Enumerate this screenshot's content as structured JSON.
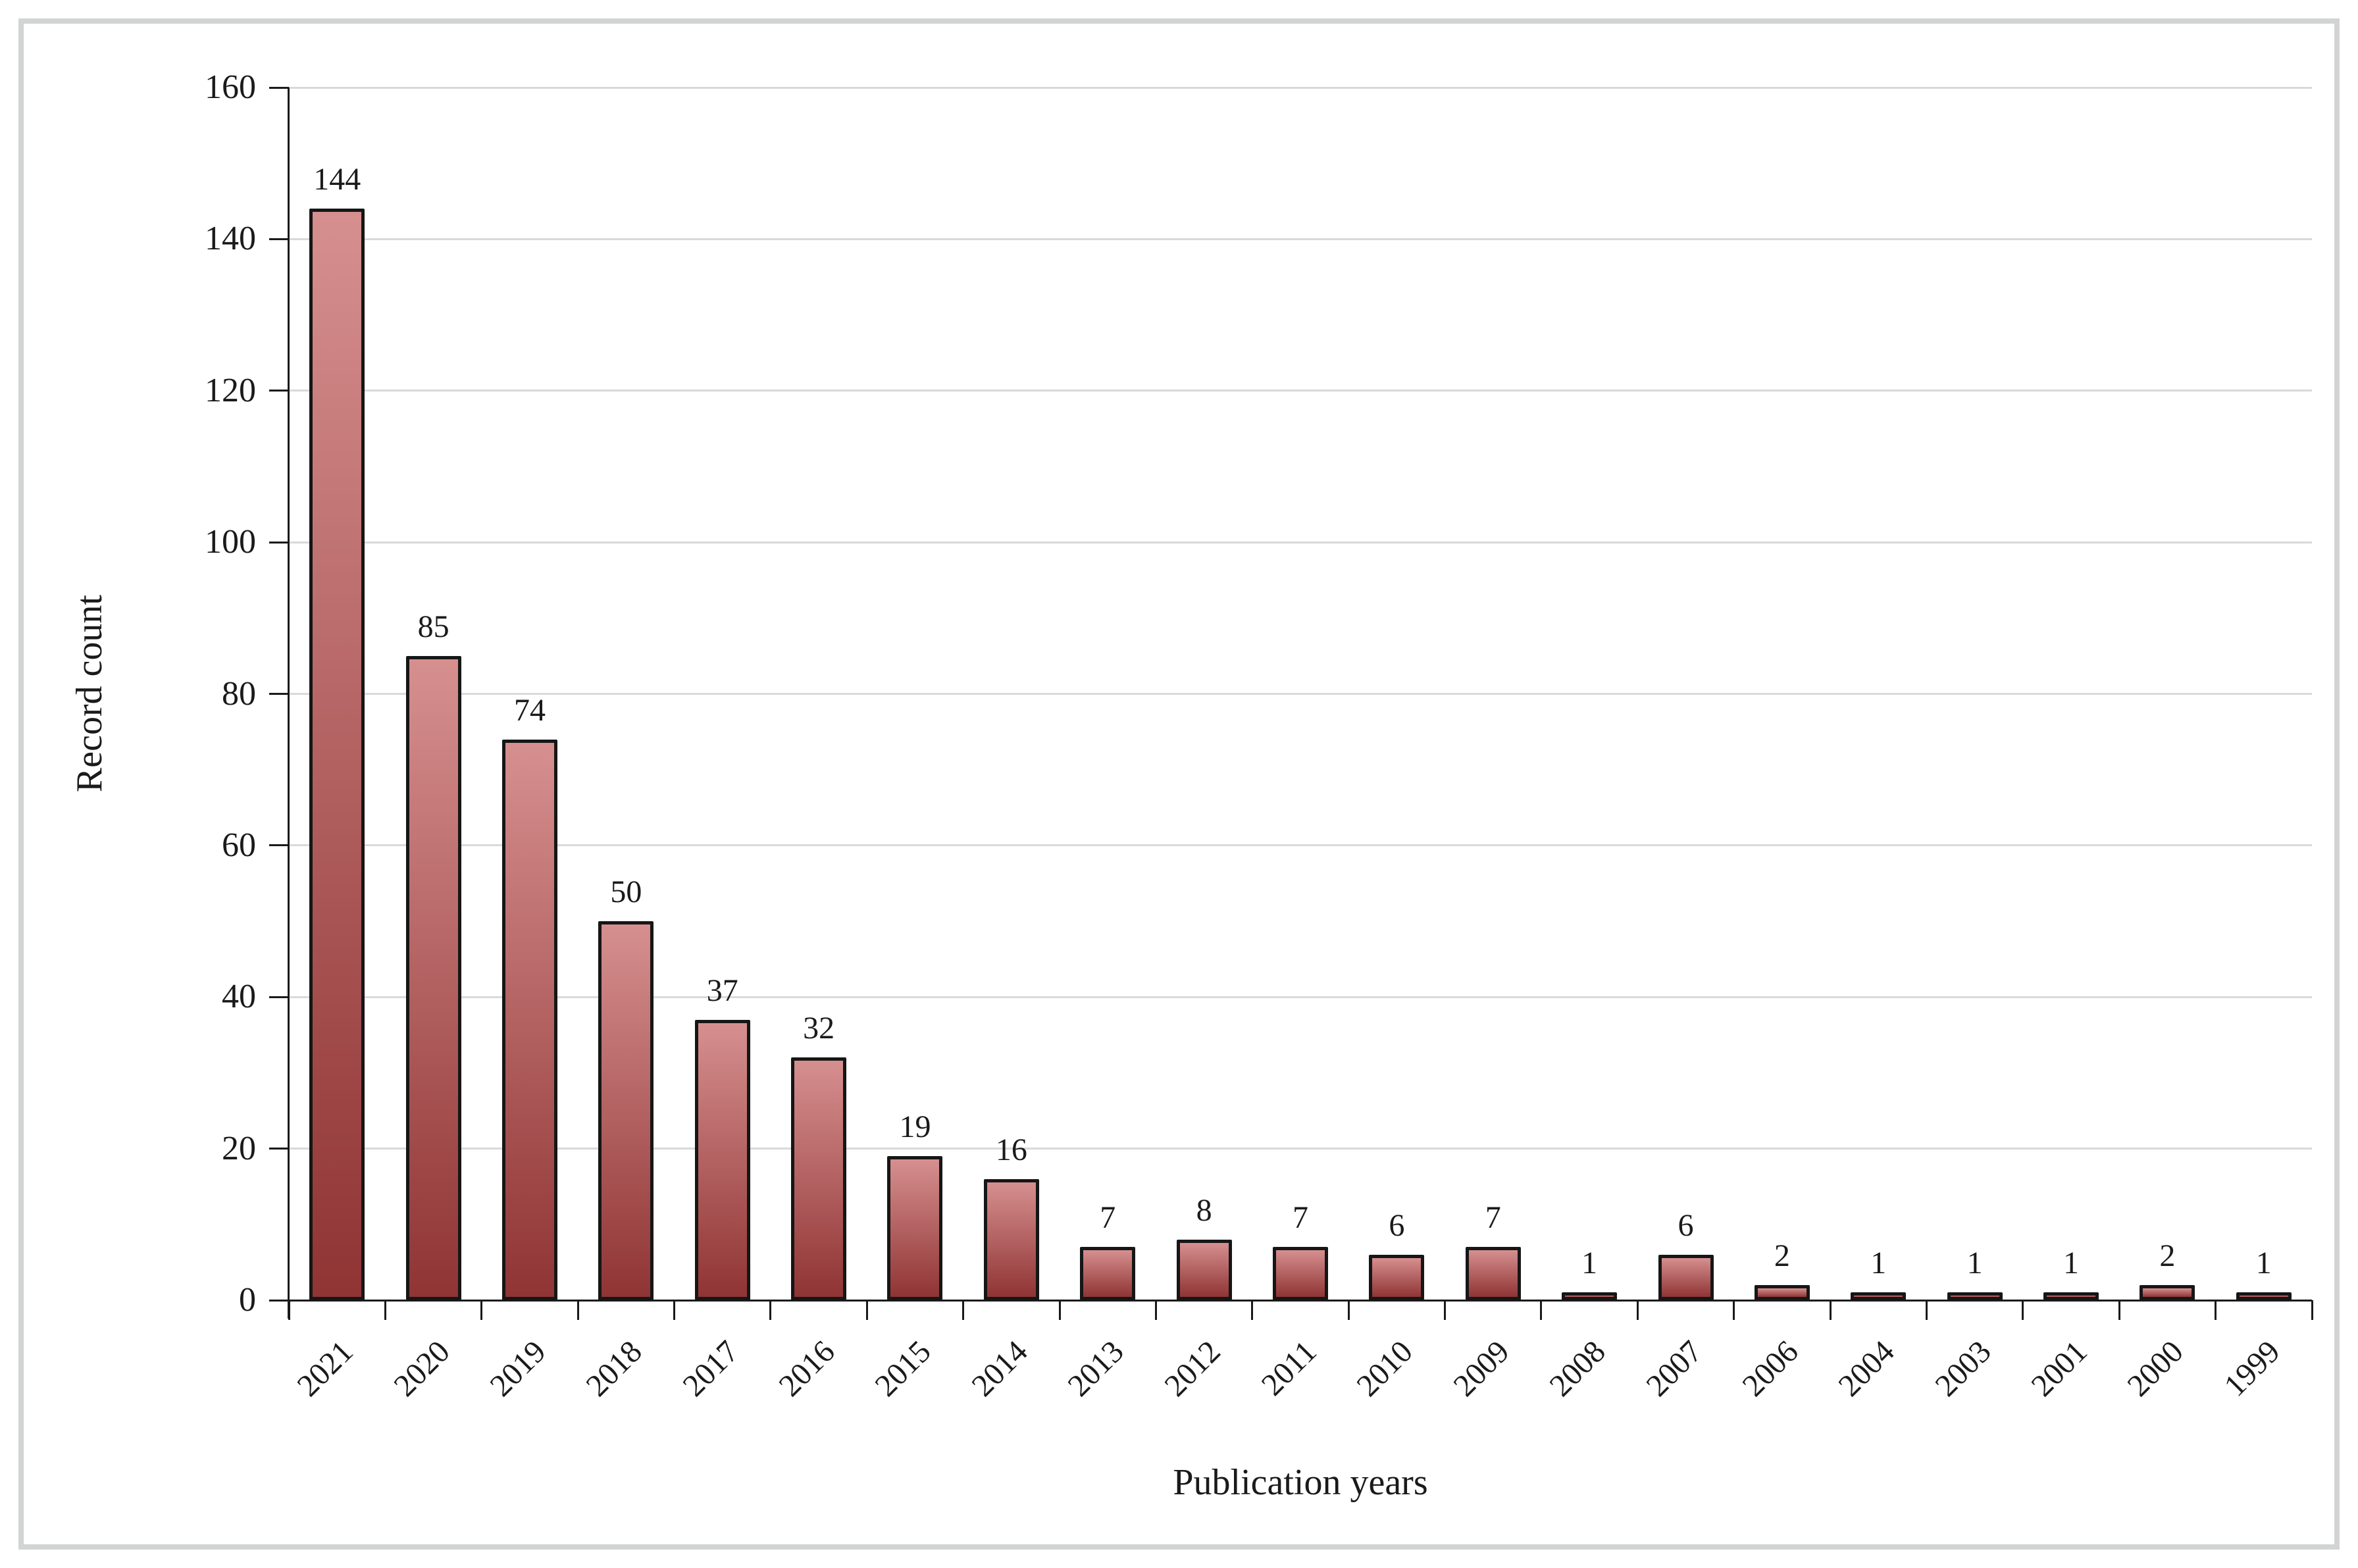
{
  "figure": {
    "background": "#ffffff",
    "frame_border_color": "#d2d3d4",
    "axis_color": "#1a1a1a",
    "gridline_color": "#d9d9d9",
    "bar_border_color": "#161616",
    "bar_fill_top": "#d68f8f",
    "bar_fill_bottom": "#903434"
  },
  "chart_data": {
    "type": "bar",
    "title": "",
    "xlabel": "Publication years",
    "ylabel": "Record count",
    "categories": [
      "2021",
      "2020",
      "2019",
      "2018",
      "2017",
      "2016",
      "2015",
      "2014",
      "2013",
      "2012",
      "2011",
      "2010",
      "2009",
      "2008",
      "2007",
      "2006",
      "2004",
      "2003",
      "2001",
      "2000",
      "1999"
    ],
    "values": [
      144,
      85,
      74,
      50,
      37,
      32,
      19,
      16,
      7,
      8,
      7,
      6,
      7,
      1,
      6,
      2,
      1,
      1,
      1,
      2,
      1
    ],
    "bar_labels_shown": true,
    "ylim": [
      0,
      160
    ],
    "ytick_step": 20,
    "ytick_labels": [
      "0",
      "20",
      "40",
      "60",
      "80",
      "100",
      "120",
      "140",
      "160"
    ],
    "grid": "horizontal",
    "legend": "none"
  }
}
